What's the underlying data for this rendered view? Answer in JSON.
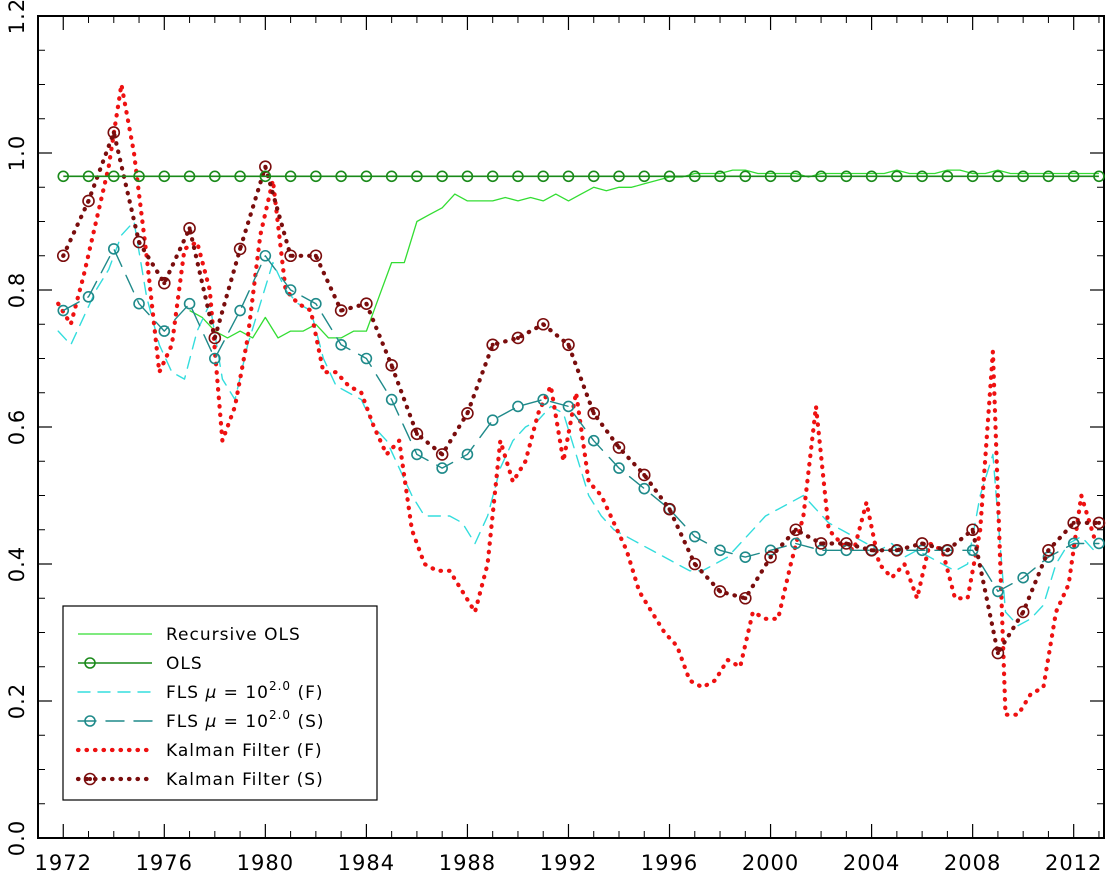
{
  "chart_data": {
    "type": "line",
    "title": "",
    "xlabel": "",
    "ylabel": "",
    "xlim": [
      1971,
      2013.2
    ],
    "ylim": [
      0.0,
      1.2
    ],
    "xticks": [
      1972,
      1976,
      1980,
      1984,
      1988,
      1992,
      1996,
      2000,
      2004,
      2008,
      2012
    ],
    "xtick_labels": [
      "1972",
      "1976",
      "1980",
      "1984",
      "1988",
      "1992",
      "1996",
      "2000",
      "2004",
      "2008",
      "2012"
    ],
    "yticks": [
      0.0,
      0.2,
      0.4,
      0.6,
      0.8,
      1.0,
      1.2
    ],
    "ytick_labels": [
      "0.0",
      "0.2",
      "0.4",
      "0.6",
      "0.8",
      "1.0",
      "1.2"
    ],
    "grid": false,
    "legend_position": "bottom-left",
    "series": [
      {
        "name": "Recursive OLS",
        "label_html": "Recursive OLS",
        "color": "#33dd33",
        "dash": "solid",
        "marker": "none",
        "width": 1.3,
        "x": [
          1977.0,
          1977.5,
          1978.0,
          1978.5,
          1979.0,
          1979.5,
          1980.0,
          1980.5,
          1981.0,
          1981.5,
          1982.0,
          1982.5,
          1983.0,
          1983.5,
          1984.0,
          1984.5,
          1985.0,
          1985.5,
          1986.0,
          1986.5,
          1987.0,
          1987.5,
          1988.0,
          1988.5,
          1989.0,
          1989.5,
          1990.0,
          1990.5,
          1991.0,
          1991.5,
          1992.0,
          1992.5,
          1993.0,
          1993.5,
          1994.0,
          1994.5,
          1995.0,
          1995.5,
          1996.0,
          1996.5,
          1997.0,
          1997.5,
          1998.0,
          1998.5,
          1999.0,
          1999.5,
          2000.0,
          2000.5,
          2001.0,
          2001.5,
          2002.0,
          2002.5,
          2003.0,
          2003.5,
          2004.0,
          2004.5,
          2005.0,
          2005.5,
          2006.0,
          2006.5,
          2007.0,
          2007.5,
          2008.0,
          2008.5,
          2009.0,
          2009.5,
          2010.0,
          2010.5,
          2011.0,
          2011.5,
          2012.0,
          2012.5,
          2013.0
        ],
        "y": [
          0.77,
          0.76,
          0.74,
          0.73,
          0.74,
          0.73,
          0.76,
          0.73,
          0.74,
          0.74,
          0.75,
          0.73,
          0.73,
          0.74,
          0.74,
          0.79,
          0.84,
          0.84,
          0.9,
          0.91,
          0.92,
          0.94,
          0.93,
          0.93,
          0.93,
          0.935,
          0.93,
          0.935,
          0.93,
          0.94,
          0.93,
          0.94,
          0.95,
          0.945,
          0.95,
          0.95,
          0.955,
          0.96,
          0.965,
          0.965,
          0.97,
          0.97,
          0.97,
          0.975,
          0.975,
          0.97,
          0.97,
          0.97,
          0.97,
          0.965,
          0.97,
          0.97,
          0.97,
          0.97,
          0.97,
          0.97,
          0.975,
          0.97,
          0.97,
          0.97,
          0.975,
          0.975,
          0.97,
          0.97,
          0.975,
          0.97,
          0.97,
          0.97,
          0.97,
          0.97,
          0.97,
          0.97,
          0.97
        ]
      },
      {
        "name": "OLS",
        "label_html": "OLS",
        "color": "#1a8a1a",
        "dash": "solid",
        "marker": "circle",
        "width": 1.6,
        "x": [
          1972,
          1973,
          1974,
          1975,
          1976,
          1977,
          1978,
          1979,
          1980,
          1981,
          1982,
          1983,
          1984,
          1985,
          1986,
          1987,
          1988,
          1989,
          1990,
          1991,
          1992,
          1993,
          1994,
          1995,
          1996,
          1997,
          1998,
          1999,
          2000,
          2001,
          2002,
          2003,
          2004,
          2005,
          2006,
          2007,
          2008,
          2009,
          2010,
          2011,
          2012,
          2013
        ],
        "y": [
          0.966,
          0.966,
          0.966,
          0.966,
          0.966,
          0.966,
          0.966,
          0.966,
          0.966,
          0.966,
          0.966,
          0.966,
          0.966,
          0.966,
          0.966,
          0.966,
          0.966,
          0.966,
          0.966,
          0.966,
          0.966,
          0.966,
          0.966,
          0.966,
          0.966,
          0.966,
          0.966,
          0.966,
          0.966,
          0.966,
          0.966,
          0.966,
          0.966,
          0.966,
          0.966,
          0.966,
          0.966,
          0.966,
          0.966,
          0.966,
          0.966,
          0.966
        ]
      },
      {
        "name": "FLS μ = 10^2.0 (F)",
        "label_html": "FLS <tspan font-style='italic'>μ</tspan> = 10<tspan dy='-8' font-size='12'>2.0</tspan><tspan dy='8'> (F)</tspan>",
        "color": "#33dddd",
        "dash": "12,8",
        "marker": "none",
        "width": 1.4,
        "x": [
          1971.8,
          1972.3,
          1972.8,
          1973.3,
          1973.8,
          1974.3,
          1974.8,
          1975.3,
          1975.8,
          1976.3,
          1976.8,
          1977.3,
          1977.8,
          1978.3,
          1978.8,
          1979.3,
          1979.8,
          1980.3,
          1980.8,
          1981.3,
          1981.8,
          1982.3,
          1982.8,
          1983.3,
          1983.8,
          1984.3,
          1984.8,
          1985.3,
          1985.8,
          1986.3,
          1986.8,
          1987.3,
          1987.8,
          1988.3,
          1988.8,
          1989.3,
          1989.8,
          1990.3,
          1990.8,
          1991.3,
          1991.8,
          1992.3,
          1992.8,
          1993.3,
          1993.8,
          1994.3,
          1994.8,
          1995.3,
          1995.8,
          1996.3,
          1996.8,
          1997.3,
          1997.8,
          1998.3,
          1998.8,
          1999.3,
          1999.8,
          2000.3,
          2000.8,
          2001.3,
          2001.8,
          2002.3,
          2002.8,
          2003.3,
          2003.8,
          2004.3,
          2004.8,
          2005.3,
          2005.8,
          2006.3,
          2006.8,
          2007.3,
          2007.8,
          2008.3,
          2008.8,
          2009.3,
          2009.8,
          2010.3,
          2010.8,
          2011.3,
          2011.8,
          2012.3,
          2012.8
        ],
        "y": [
          0.74,
          0.72,
          0.76,
          0.8,
          0.83,
          0.88,
          0.9,
          0.79,
          0.72,
          0.68,
          0.67,
          0.74,
          0.78,
          0.67,
          0.64,
          0.72,
          0.78,
          0.84,
          0.8,
          0.78,
          0.77,
          0.7,
          0.66,
          0.65,
          0.64,
          0.6,
          0.58,
          0.54,
          0.5,
          0.47,
          0.47,
          0.47,
          0.46,
          0.43,
          0.47,
          0.54,
          0.58,
          0.6,
          0.61,
          0.63,
          0.62,
          0.56,
          0.5,
          0.47,
          0.45,
          0.44,
          0.43,
          0.42,
          0.41,
          0.4,
          0.39,
          0.39,
          0.4,
          0.41,
          0.43,
          0.45,
          0.47,
          0.48,
          0.49,
          0.5,
          0.48,
          0.46,
          0.45,
          0.44,
          0.43,
          0.42,
          0.43,
          0.41,
          0.42,
          0.41,
          0.4,
          0.39,
          0.4,
          0.5,
          0.56,
          0.33,
          0.31,
          0.32,
          0.34,
          0.4,
          0.43,
          0.44,
          0.42
        ]
      },
      {
        "name": "FLS μ = 10^2.0 (S)",
        "label_html": "FLS <tspan font-style='italic'>μ</tspan> = 10<tspan dy='-8' font-size='12'>2.0</tspan><tspan dy='8'> (S)</tspan>",
        "color": "#1f8a8a",
        "dash": "18,10",
        "marker": "circle",
        "width": 1.4,
        "x": [
          1972,
          1973,
          1974,
          1975,
          1976,
          1977,
          1978,
          1979,
          1980,
          1981,
          1982,
          1983,
          1984,
          1985,
          1986,
          1987,
          1988,
          1989,
          1990,
          1991,
          1992,
          1993,
          1994,
          1995,
          1996,
          1997,
          1998,
          1999,
          2000,
          2001,
          2002,
          2003,
          2004,
          2005,
          2006,
          2007,
          2008,
          2009,
          2010,
          2011,
          2012,
          2013
        ],
        "y": [
          0.77,
          0.79,
          0.86,
          0.78,
          0.74,
          0.78,
          0.7,
          0.77,
          0.85,
          0.8,
          0.78,
          0.72,
          0.7,
          0.64,
          0.56,
          0.54,
          0.56,
          0.61,
          0.63,
          0.64,
          0.63,
          0.58,
          0.54,
          0.51,
          0.48,
          0.44,
          0.42,
          0.41,
          0.42,
          0.43,
          0.42,
          0.42,
          0.42,
          0.42,
          0.42,
          0.42,
          0.42,
          0.36,
          0.38,
          0.41,
          0.43,
          0.43
        ]
      },
      {
        "name": "Kalman Filter (F)",
        "label_html": "Kalman Filter (F)",
        "color": "#ee1111",
        "dash": "0.5,8",
        "marker": "none",
        "width": 4.2,
        "x": [
          1971.8,
          1972.3,
          1972.8,
          1973.3,
          1973.8,
          1974.3,
          1974.8,
          1975.3,
          1975.8,
          1976.3,
          1976.8,
          1977.3,
          1977.8,
          1978.3,
          1978.8,
          1979.3,
          1979.8,
          1980.3,
          1980.8,
          1981.3,
          1981.8,
          1982.3,
          1982.8,
          1983.3,
          1983.8,
          1984.3,
          1984.8,
          1985.3,
          1985.8,
          1986.3,
          1986.8,
          1987.3,
          1987.8,
          1988.3,
          1988.8,
          1989.3,
          1989.8,
          1990.3,
          1990.8,
          1991.3,
          1991.8,
          1992.3,
          1992.8,
          1993.3,
          1993.8,
          1994.3,
          1994.8,
          1995.3,
          1995.8,
          1996.3,
          1996.8,
          1997.3,
          1997.8,
          1998.3,
          1998.8,
          1999.3,
          1999.8,
          2000.3,
          2000.8,
          2001.3,
          2001.8,
          2002.3,
          2002.8,
          2003.3,
          2003.8,
          2004.3,
          2004.8,
          2005.3,
          2005.8,
          2006.3,
          2006.8,
          2007.3,
          2007.8,
          2008.3,
          2008.8,
          2009.3,
          2009.8,
          2010.3,
          2010.8,
          2011.3,
          2011.8,
          2012.3,
          2012.8
        ],
        "y": [
          0.78,
          0.75,
          0.82,
          0.9,
          0.98,
          1.1,
          1.0,
          0.85,
          0.68,
          0.72,
          0.86,
          0.87,
          0.8,
          0.58,
          0.63,
          0.73,
          0.88,
          0.96,
          0.8,
          0.78,
          0.77,
          0.68,
          0.68,
          0.66,
          0.65,
          0.6,
          0.56,
          0.58,
          0.45,
          0.4,
          0.39,
          0.39,
          0.36,
          0.33,
          0.4,
          0.58,
          0.52,
          0.55,
          0.62,
          0.66,
          0.55,
          0.65,
          0.52,
          0.5,
          0.46,
          0.42,
          0.36,
          0.33,
          0.3,
          0.28,
          0.23,
          0.22,
          0.23,
          0.26,
          0.25,
          0.33,
          0.32,
          0.32,
          0.4,
          0.47,
          0.63,
          0.45,
          0.43,
          0.42,
          0.49,
          0.4,
          0.38,
          0.4,
          0.35,
          0.43,
          0.42,
          0.35,
          0.35,
          0.45,
          0.71,
          0.18,
          0.18,
          0.21,
          0.22,
          0.33,
          0.37,
          0.5,
          0.44
        ]
      },
      {
        "name": "Kalman Filter (S)",
        "label_html": "Kalman Filter (S)",
        "color": "#7a0d0d",
        "dash": "0.5,8",
        "marker": "circle-dot",
        "width": 4.2,
        "x": [
          1972,
          1973,
          1974,
          1975,
          1976,
          1977,
          1978,
          1979,
          1980,
          1981,
          1982,
          1983,
          1984,
          1985,
          1986,
          1987,
          1988,
          1989,
          1990,
          1991,
          1992,
          1993,
          1994,
          1995,
          1996,
          1997,
          1998,
          1999,
          2000,
          2001,
          2002,
          2003,
          2004,
          2005,
          2006,
          2007,
          2008,
          2009,
          2010,
          2011,
          2012,
          2013
        ],
        "y": [
          0.85,
          0.93,
          1.03,
          0.87,
          0.81,
          0.89,
          0.73,
          0.86,
          0.98,
          0.85,
          0.85,
          0.77,
          0.78,
          0.69,
          0.59,
          0.56,
          0.62,
          0.72,
          0.73,
          0.75,
          0.72,
          0.62,
          0.57,
          0.53,
          0.48,
          0.4,
          0.36,
          0.35,
          0.41,
          0.45,
          0.43,
          0.43,
          0.42,
          0.42,
          0.43,
          0.42,
          0.45,
          0.27,
          0.33,
          0.42,
          0.46,
          0.46
        ]
      }
    ]
  }
}
